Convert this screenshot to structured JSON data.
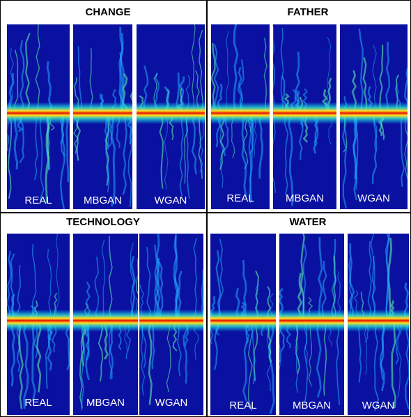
{
  "panels": [
    {
      "title": "CHANGE",
      "labels": [
        "REAL",
        "MBGAN",
        "WGAN"
      ]
    },
    {
      "title": "FATHER",
      "labels": [
        "REAL",
        "MBGAN",
        "WGAN"
      ]
    },
    {
      "title": "TECHNOLOGY",
      "labels": [
        "REAL",
        "MBGAN",
        "WGAN"
      ]
    },
    {
      "title": "WATER",
      "labels": [
        "REAL",
        "MBGAN",
        "WGAN"
      ]
    }
  ]
}
